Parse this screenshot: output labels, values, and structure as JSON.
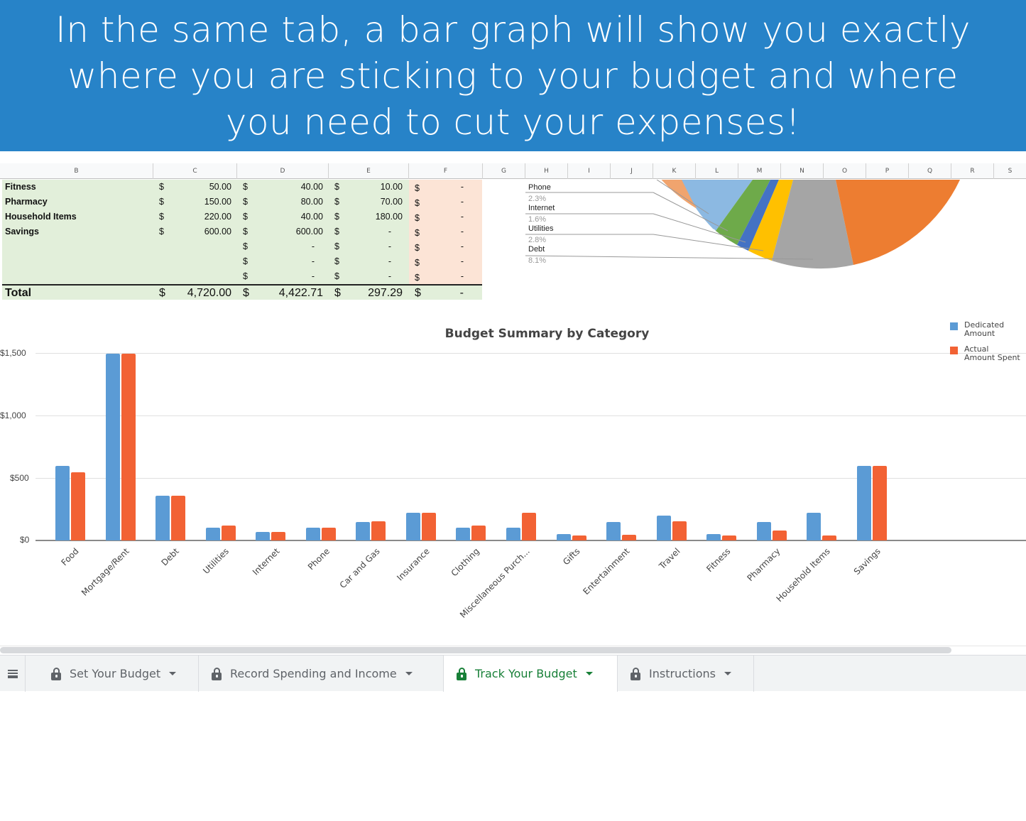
{
  "banner": {
    "lines": [
      "In the same tab, a bar graph will show you exactly",
      "where you are sticking to your budget and where",
      "you need to cut your expenses!"
    ],
    "background": "#2783c8"
  },
  "spreadsheet": {
    "columns": [
      "B",
      "C",
      "D",
      "E",
      "F",
      "G",
      "H",
      "I",
      "J",
      "K",
      "L",
      "M",
      "N",
      "O",
      "P",
      "Q",
      "R",
      "S"
    ],
    "rows": [
      {
        "label": "Fitness",
        "c_sym": "$",
        "c": "50.00",
        "d_sym": "$",
        "d": "40.00",
        "e_sym": "$",
        "e": "10.00",
        "f_sym": "$",
        "f": "-"
      },
      {
        "label": "Pharmacy",
        "c_sym": "$",
        "c": "150.00",
        "d_sym": "$",
        "d": "80.00",
        "e_sym": "$",
        "e": "70.00",
        "f_sym": "$",
        "f": "-"
      },
      {
        "label": "Household Items",
        "c_sym": "$",
        "c": "220.00",
        "d_sym": "$",
        "d": "40.00",
        "e_sym": "$",
        "e": "180.00",
        "f_sym": "$",
        "f": "-"
      },
      {
        "label": "Savings",
        "c_sym": "$",
        "c": "600.00",
        "d_sym": "$",
        "d": "600.00",
        "e_sym": "$",
        "e": "-",
        "f_sym": "$",
        "f": "-"
      },
      {
        "label": "",
        "c_sym": "",
        "c": "",
        "d_sym": "$",
        "d": "-",
        "e_sym": "$",
        "e": "-",
        "f_sym": "$",
        "f": "-"
      },
      {
        "label": "",
        "c_sym": "",
        "c": "",
        "d_sym": "$",
        "d": "-",
        "e_sym": "$",
        "e": "-",
        "f_sym": "$",
        "f": "-"
      },
      {
        "label": "",
        "c_sym": "",
        "c": "",
        "d_sym": "$",
        "d": "-",
        "e_sym": "$",
        "e": "-",
        "f_sym": "$",
        "f": "-"
      }
    ],
    "total": {
      "label": "Total",
      "c_sym": "$",
      "c": "4,720.00",
      "d_sym": "$",
      "d": "4,422.71",
      "e_sym": "$",
      "e": "297.29",
      "f_sym": "$",
      "f": "-"
    }
  },
  "pie_chart": {
    "labels": [
      {
        "name": "Phone",
        "pct": "2.3%"
      },
      {
        "name": "Internet",
        "pct": "1.6%"
      },
      {
        "name": "Utilities",
        "pct": "2.8%"
      },
      {
        "name": "Debt",
        "pct": "8.1%"
      }
    ],
    "colors": {
      "peach": "#f0a46e",
      "lightblue": "#8cb9e2",
      "green": "#6eaa4a",
      "blue": "#4472c4",
      "yellow": "#ffc000",
      "gray": "#a5a5a5",
      "orange": "#ed7d31"
    }
  },
  "chart_data": {
    "type": "bar",
    "title": "Budget Summary by Category",
    "xlabel": "",
    "ylabel": "",
    "ylim": [
      0,
      1500
    ],
    "yticks": [
      "$0",
      "$500",
      "$1,000",
      "$1,500"
    ],
    "grid": true,
    "legend_position": "top-right",
    "categories": [
      "Food",
      "Mortgage/Rent",
      "Debt",
      "Utilities",
      "Internet",
      "Phone",
      "Car and Gas",
      "Insurance",
      "Clothing",
      "Miscellaneous Purch...",
      "Gifts",
      "Entertainment",
      "Travel",
      "Fitness",
      "Pharmacy",
      "Household Items",
      "Savings"
    ],
    "series": [
      {
        "name": "Dedicated Amount",
        "color": "#5b9bd5",
        "values": [
          600,
          1500,
          360,
          100,
          70,
          100,
          150,
          220,
          100,
          100,
          50,
          150,
          200,
          50,
          150,
          220,
          600
        ]
      },
      {
        "name": "Actual Amount Spent",
        "color": "#f26234",
        "values": [
          550,
          1500,
          360,
          120,
          70,
          100,
          155,
          220,
          120,
          225,
          40,
          45,
          155,
          40,
          80,
          40,
          600
        ]
      }
    ]
  },
  "legend": {
    "items": [
      {
        "line1": "Dedicated",
        "line2": "Amount",
        "color": "#5b9bd5"
      },
      {
        "line1": "Actual",
        "line2": "Amount Spent",
        "color": "#f26234"
      }
    ]
  },
  "sheet_tabs": {
    "menu_icon": "all-sheets-icon",
    "tabs": [
      {
        "label": "Set Your Budget",
        "active": false,
        "locked": true
      },
      {
        "label": "Record Spending and Income",
        "active": false,
        "locked": true
      },
      {
        "label": "Track Your Budget",
        "active": true,
        "locked": true
      },
      {
        "label": "Instructions",
        "active": false,
        "locked": true
      }
    ]
  }
}
